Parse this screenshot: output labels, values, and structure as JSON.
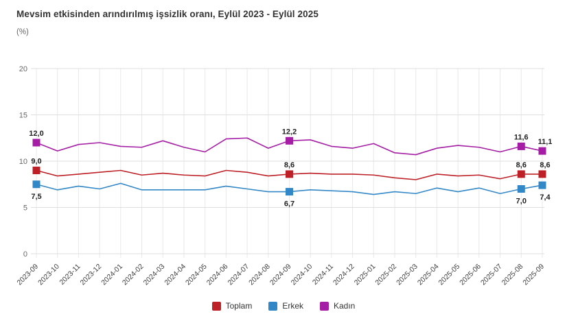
{
  "header": {
    "title": "Mevsim etkisinden arındırılmış işsizlik oranı, Eylül 2023 - Eylül 2025",
    "subtitle": "(%)"
  },
  "chart_data": {
    "type": "line",
    "title": "Mevsim etkisinden arındırılmış işsizlik oranı, Eylül 2023 - Eylül 2025",
    "ylabel": "(%)",
    "xlabel": "",
    "ylim": [
      0,
      20
    ],
    "yticks": [
      0,
      5,
      10,
      15,
      20
    ],
    "grid": true,
    "legend_position": "bottom",
    "decimal_separator": ",",
    "categories": [
      "2023-09",
      "2023-10",
      "2023-11",
      "2023-12",
      "2024-01",
      "2024-02",
      "2024-03",
      "2024-04",
      "2024-05",
      "2024-06",
      "2024-07",
      "2024-08",
      "2024-09",
      "2024-10",
      "2024-11",
      "2024-12",
      "2025-01",
      "2025-02",
      "2025-03",
      "2025-04",
      "2025-05",
      "2025-06",
      "2025-07",
      "2025-08",
      "2025-09"
    ],
    "marked_indices": [
      0,
      12,
      23,
      24
    ],
    "series": [
      {
        "name": "Toplam",
        "color": "#bd2026",
        "label_side": "above",
        "values": [
          9.0,
          8.4,
          8.6,
          8.8,
          9.0,
          8.5,
          8.7,
          8.5,
          8.4,
          9.0,
          8.8,
          8.4,
          8.6,
          8.7,
          8.6,
          8.6,
          8.5,
          8.2,
          8.0,
          8.6,
          8.4,
          8.5,
          8.1,
          8.6,
          8.6
        ],
        "marked_labels": [
          "9,0",
          "8,6",
          "8,6",
          "8,6"
        ]
      },
      {
        "name": "Erkek",
        "color": "#3287c6",
        "label_side": "below",
        "values": [
          7.5,
          6.9,
          7.3,
          7.0,
          7.6,
          6.9,
          6.9,
          6.9,
          6.9,
          7.3,
          7.0,
          6.7,
          6.7,
          6.9,
          6.8,
          6.7,
          6.4,
          6.7,
          6.5,
          7.1,
          6.7,
          7.1,
          6.5,
          7.0,
          7.4
        ],
        "marked_labels": [
          "7,5",
          "6,7",
          "7,0",
          "7,4"
        ]
      },
      {
        "name": "Kadın",
        "color": "#a41da4",
        "label_side": "above",
        "values": [
          12.0,
          11.1,
          11.8,
          12.0,
          11.6,
          11.5,
          12.2,
          11.5,
          11.0,
          12.4,
          12.5,
          11.4,
          12.2,
          12.3,
          11.6,
          11.4,
          11.9,
          10.9,
          10.7,
          11.4,
          11.7,
          11.5,
          11.0,
          11.6,
          11.1
        ],
        "marked_labels": [
          "12,0",
          "12,2",
          "11,6",
          "11,1"
        ]
      }
    ],
    "colors": {
      "grid_vertical": "#e8e8e8",
      "grid_horizontal": "#dedede",
      "axis_tick_text": "#666666",
      "x_label_text": "#3d3d3d",
      "data_label_text": "#1f1f1f"
    }
  }
}
